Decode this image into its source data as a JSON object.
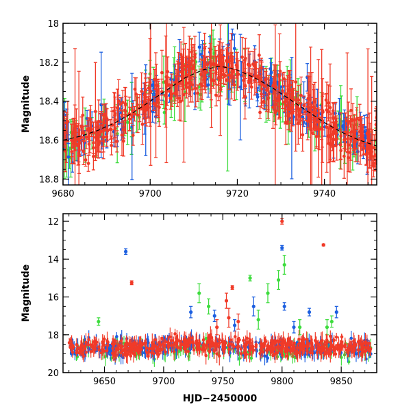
{
  "chart_data": [
    {
      "type": "scatter",
      "title": "",
      "xlabel": "",
      "ylabel": "Magnitude",
      "xlim": [
        9680,
        9752
      ],
      "ylim": [
        18.83,
        18.0
      ],
      "y_inverted": true,
      "x_ticks": [
        "9680",
        "9700",
        "9720",
        "9740"
      ],
      "y_ticks": [
        "18",
        "18.2",
        "18.4",
        "18.6",
        "18.8"
      ],
      "model_curve": {
        "name": "model",
        "style": "dashed",
        "x": [
          9680,
          9684,
          9688,
          9692,
          9696,
          9700,
          9704,
          9708,
          9712,
          9716,
          9720,
          9724,
          9728,
          9732,
          9736,
          9740,
          9744,
          9748,
          9752
        ],
        "y": [
          18.6,
          18.58,
          18.55,
          18.51,
          18.46,
          18.4,
          18.34,
          18.28,
          18.24,
          18.22,
          18.24,
          18.28,
          18.33,
          18.39,
          18.45,
          18.51,
          18.56,
          18.6,
          18.63
        ]
      },
      "series": [
        {
          "name": "blue",
          "color": "#1c5fe0",
          "points_count": 170,
          "x_range": [
            9680,
            9752
          ],
          "y_range": [
            18.1,
            18.78
          ],
          "typical_error": 0.05
        },
        {
          "name": "green",
          "color": "#3ddc3d",
          "points_count": 95,
          "x_range": [
            9680,
            9752
          ],
          "y_range": [
            18.1,
            18.8
          ],
          "typical_error": 0.09
        },
        {
          "name": "red",
          "color": "#f03a28",
          "points_count": 430,
          "x_range": [
            9680,
            9752
          ],
          "y_range": [
            18.2,
            18.75
          ],
          "typical_error": 0.07
        }
      ]
    },
    {
      "type": "scatter",
      "title": "",
      "xlabel": "HJD−2450000",
      "ylabel": "Magnitude",
      "xlim": [
        9615,
        9880
      ],
      "ylim": [
        20.0,
        11.6
      ],
      "y_inverted": true,
      "x_ticks": [
        "9650",
        "9700",
        "9750",
        "9800",
        "9850"
      ],
      "y_ticks": [
        "12",
        "14",
        "16",
        "18",
        "20"
      ],
      "series": [
        {
          "name": "blue",
          "color": "#1c5fe0",
          "baseline": 18.7,
          "outliers": [
            {
              "x": 9668,
              "y": 13.6,
              "err": 0.15
            },
            {
              "x": 9723,
              "y": 16.8,
              "err": 0.3
            },
            {
              "x": 9743,
              "y": 17.0,
              "err": 0.3
            },
            {
              "x": 9760,
              "y": 17.5,
              "err": 0.3
            },
            {
              "x": 9776,
              "y": 16.5,
              "err": 0.5
            },
            {
              "x": 9800,
              "y": 13.4,
              "err": 0.12
            },
            {
              "x": 9802,
              "y": 16.5,
              "err": 0.2
            },
            {
              "x": 9810,
              "y": 17.6,
              "err": 0.3
            },
            {
              "x": 9823,
              "y": 16.8,
              "err": 0.2
            },
            {
              "x": 9846,
              "y": 16.8,
              "err": 0.3
            }
          ]
        },
        {
          "name": "green",
          "color": "#3ddc3d",
          "baseline": 18.9,
          "outliers": [
            {
              "x": 9645,
              "y": 17.3,
              "err": 0.2
            },
            {
              "x": 9730,
              "y": 15.8,
              "err": 0.5
            },
            {
              "x": 9738,
              "y": 16.5,
              "err": 0.4
            },
            {
              "x": 9773,
              "y": 15.0,
              "err": 0.15
            },
            {
              "x": 9780,
              "y": 17.2,
              "err": 0.5
            },
            {
              "x": 9788,
              "y": 15.8,
              "err": 0.5
            },
            {
              "x": 9797,
              "y": 15.1,
              "err": 0.5
            },
            {
              "x": 9802,
              "y": 14.3,
              "err": 0.5
            },
            {
              "x": 9815,
              "y": 17.6,
              "err": 0.4
            },
            {
              "x": 9838,
              "y": 17.6,
              "err": 0.4
            },
            {
              "x": 9842,
              "y": 17.3,
              "err": 0.3
            }
          ]
        },
        {
          "name": "red",
          "color": "#f03a28",
          "baseline": 18.65,
          "outliers": [
            {
              "x": 9673,
              "y": 15.25,
              "err": 0.1
            },
            {
              "x": 9745,
              "y": 17.6,
              "err": 0.4
            },
            {
              "x": 9753,
              "y": 16.2,
              "err": 0.4
            },
            {
              "x": 9755,
              "y": 17.1,
              "err": 0.5
            },
            {
              "x": 9758,
              "y": 15.5,
              "err": 0.1
            },
            {
              "x": 9763,
              "y": 17.3,
              "err": 0.4
            },
            {
              "x": 9800,
              "y": 12.0,
              "err": 0.15
            },
            {
              "x": 9835,
              "y": 13.25,
              "err": 0.05
            }
          ]
        }
      ]
    }
  ]
}
